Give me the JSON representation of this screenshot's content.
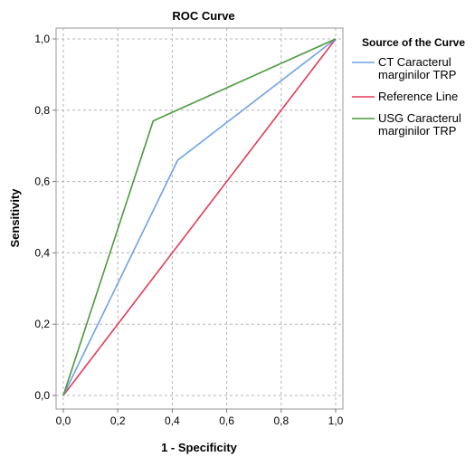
{
  "chart_data": {
    "type": "line",
    "title": "ROC Curve",
    "xlabel": "1 - Specificity",
    "ylabel": "Sensitivity",
    "xlim": [
      0,
      1
    ],
    "ylim": [
      0,
      1
    ],
    "x_ticks": [
      "0,0",
      "0,2",
      "0,4",
      "0,6",
      "0,8",
      "1,0"
    ],
    "y_ticks": [
      "0,0",
      "0,2",
      "0,4",
      "0,6",
      "0,8",
      "1,0"
    ],
    "grid": true,
    "legend": {
      "title": "Source of the Curve",
      "placement": "right"
    },
    "series": [
      {
        "name": "CT Caracterul marginilor TRP",
        "legend_lines": [
          "CT Caracterul",
          "marginilor TRP"
        ],
        "color": "#6fa1e6",
        "x": [
          0,
          0.42,
          1.0
        ],
        "y": [
          0,
          0.66,
          1.0
        ]
      },
      {
        "name": "Reference Line",
        "legend_lines": [
          "Reference Line"
        ],
        "color": "#e33a58",
        "x": [
          0,
          1.0
        ],
        "y": [
          0,
          1.0
        ]
      },
      {
        "name": "USG Caracterul marginilor TRP",
        "legend_lines": [
          "USG Caracterul",
          "marginilor TRP"
        ],
        "color": "#4a9a3c",
        "x": [
          0,
          0.33,
          1.0
        ],
        "y": [
          0,
          0.77,
          1.0
        ]
      }
    ]
  }
}
